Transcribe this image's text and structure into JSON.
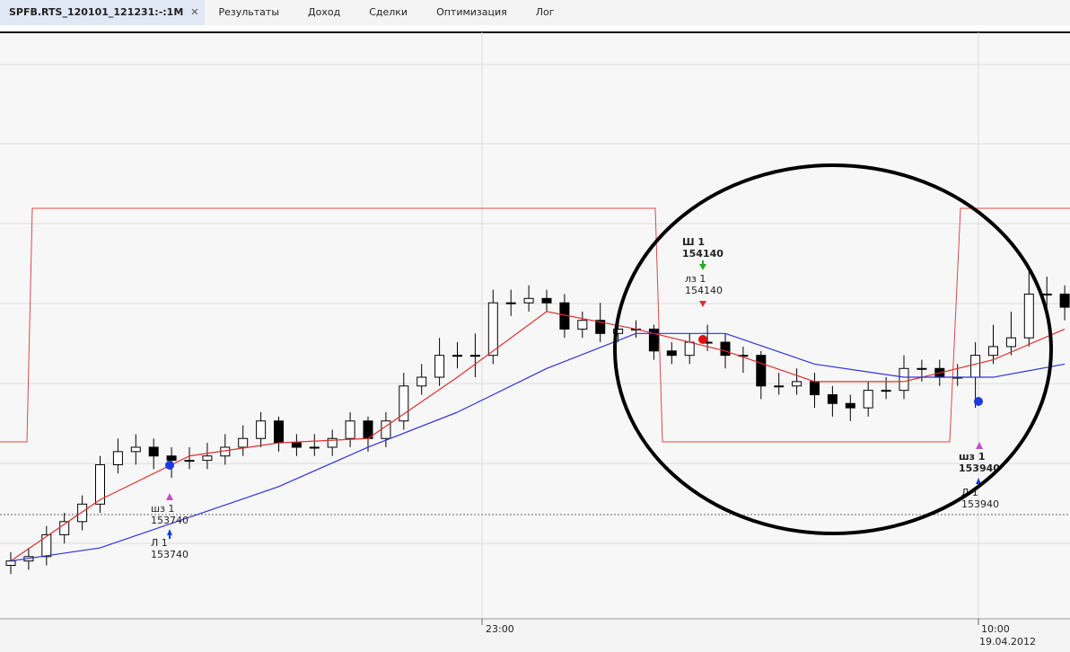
{
  "tabs": {
    "active": "SPFB.RTS_120101_121231:-:1M",
    "items": [
      "Результаты",
      "Доход",
      "Сделки",
      "Оптимизация",
      "Лог"
    ]
  },
  "chart_data": {
    "type": "candlestick",
    "ylim": [
      153500,
      154830
    ],
    "ohlc": [
      [
        153620,
        153650,
        153600,
        153630
      ],
      [
        153630,
        153660,
        153610,
        153640
      ],
      [
        153640,
        153710,
        153620,
        153690
      ],
      [
        153690,
        153740,
        153670,
        153720
      ],
      [
        153720,
        153780,
        153700,
        153760
      ],
      [
        153760,
        153870,
        153740,
        153850
      ],
      [
        153850,
        153910,
        153830,
        153880
      ],
      [
        153880,
        153920,
        153850,
        153890
      ],
      [
        153890,
        153910,
        153840,
        153870
      ],
      [
        153870,
        153890,
        153820,
        153860
      ],
      [
        153860,
        153890,
        153840,
        153860
      ],
      [
        153860,
        153900,
        153840,
        153870
      ],
      [
        153870,
        153920,
        153850,
        153890
      ],
      [
        153890,
        153940,
        153870,
        153910
      ],
      [
        153910,
        153970,
        153890,
        153950
      ],
      [
        153950,
        153960,
        153880,
        153900
      ],
      [
        153900,
        153920,
        153870,
        153890
      ],
      [
        153890,
        153920,
        153870,
        153890
      ],
      [
        153890,
        153930,
        153870,
        153910
      ],
      [
        153910,
        153970,
        153890,
        153950
      ],
      [
        153950,
        153960,
        153880,
        153910
      ],
      [
        153910,
        153970,
        153890,
        153950
      ],
      [
        153950,
        154060,
        153930,
        154030
      ],
      [
        154030,
        154080,
        154010,
        154050
      ],
      [
        154050,
        154140,
        154030,
        154100
      ],
      [
        154100,
        154130,
        154070,
        154100
      ],
      [
        154100,
        154150,
        154050,
        154100
      ],
      [
        154100,
        154250,
        154080,
        154220
      ],
      [
        154220,
        154250,
        154190,
        154220
      ],
      [
        154220,
        154260,
        154200,
        154230
      ],
      [
        154230,
        154250,
        154200,
        154220
      ],
      [
        154220,
        154240,
        154140,
        154160
      ],
      [
        154160,
        154200,
        154140,
        154180
      ],
      [
        154180,
        154220,
        154130,
        154150
      ],
      [
        154150,
        154180,
        154130,
        154160
      ],
      [
        154160,
        154180,
        154140,
        154160
      ],
      [
        154160,
        154170,
        154090,
        154110
      ],
      [
        154110,
        154130,
        154080,
        154100
      ],
      [
        154100,
        154150,
        154080,
        154130
      ],
      [
        154130,
        154170,
        154110,
        154130
      ],
      [
        154130,
        154150,
        154070,
        154100
      ],
      [
        154100,
        154120,
        154060,
        154100
      ],
      [
        154100,
        154110,
        154000,
        154030
      ],
      [
        154030,
        154060,
        154010,
        154030
      ],
      [
        154030,
        154070,
        154010,
        154040
      ],
      [
        154040,
        154060,
        153980,
        154010
      ],
      [
        154010,
        154030,
        153960,
        153990
      ],
      [
        153990,
        154010,
        153950,
        153980
      ],
      [
        153980,
        154040,
        153960,
        154020
      ],
      [
        154020,
        154050,
        154000,
        154020
      ],
      [
        154020,
        154100,
        154000,
        154070
      ],
      [
        154070,
        154090,
        154040,
        154070
      ],
      [
        154070,
        154090,
        154030,
        154050
      ],
      [
        154050,
        154080,
        154030,
        154050
      ],
      [
        154050,
        154130,
        153980,
        154100
      ],
      [
        154100,
        154170,
        154080,
        154120
      ],
      [
        154120,
        154200,
        154100,
        154140
      ],
      [
        154140,
        154300,
        154120,
        154240
      ],
      [
        154240,
        154280,
        154200,
        154240
      ],
      [
        154240,
        154260,
        154180,
        154210
      ]
    ],
    "ma_x": [
      0,
      5,
      10,
      15,
      20,
      25,
      30,
      35,
      40,
      45,
      50,
      55,
      59
    ],
    "ma_fast": {
      "color": "#e03030",
      "values": [
        153630,
        153770,
        153870,
        153900,
        153910,
        154050,
        154200,
        154160,
        154110,
        154040,
        154040,
        154090,
        154160
      ]
    },
    "ma_slow": {
      "color": "#3030e0",
      "values": [
        153630,
        153660,
        153730,
        153800,
        153890,
        153970,
        154070,
        154150,
        154150,
        154080,
        154050,
        154050,
        154080
      ]
    },
    "time_labels": [
      "23:00",
      "10:00",
      "19.04.2012"
    ],
    "trades": [
      {
        "title": "шз 1",
        "price": 153740,
        "bold": false
      },
      {
        "title": "Л 1",
        "price": 153740,
        "bold": false
      },
      {
        "title": "Ш 1",
        "price": 154140,
        "bold": true
      },
      {
        "title": "лз 1",
        "price": 154140,
        "bold": false
      },
      {
        "title": "шз 1",
        "price": 153940,
        "bold": true
      },
      {
        "title": "Л 1",
        "price": 153940,
        "bold": false
      }
    ]
  }
}
